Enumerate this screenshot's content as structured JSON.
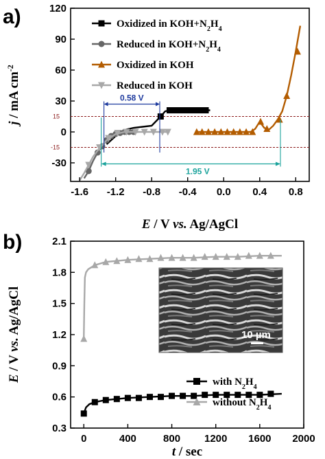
{
  "panels": {
    "a": "a)",
    "b": "b)"
  },
  "chart_data": [
    {
      "type": "line",
      "xlabel_parts": [
        "E",
        " / V ",
        "vs.",
        " Ag/AgCl"
      ],
      "ylabel_parts": [
        "j",
        " / mA cm",
        "-2"
      ],
      "xlim": [
        -1.7,
        0.95
      ],
      "ylim": [
        -48,
        120
      ],
      "xticks": [
        "-1.6",
        "-1.2",
        "-0.8",
        "-0.4",
        "0.0",
        "0.4",
        "0.8"
      ],
      "xtick_values": [
        -1.6,
        -1.2,
        -0.8,
        -0.4,
        0.0,
        0.4,
        0.8
      ],
      "yticks": [
        "-30",
        "0",
        "30",
        "60",
        "90",
        "120"
      ],
      "ytick_values": [
        -30,
        0,
        30,
        60,
        90,
        120
      ],
      "extra_yticks": [
        "15",
        "-15"
      ],
      "extra_ytick_values": [
        15,
        -15
      ],
      "legend": [
        {
          "label_parts": [
            "Oxidized in KOH+N",
            "2",
            "H",
            "4"
          ],
          "color": "#000000",
          "marker": "square"
        },
        {
          "label_parts": [
            "Reduced in KOH+N",
            "2",
            "H",
            "4"
          ],
          "color": "#666666",
          "marker": "circle"
        },
        {
          "label": "Oxidized in KOH",
          "color": "#b35c00",
          "marker": "triangle-up"
        },
        {
          "label": "Reduced in KOH",
          "color": "#a8a8a8",
          "marker": "triangle-down"
        }
      ],
      "series": [
        {
          "name": "Oxidized in KOH+N2H4",
          "color": "#000000",
          "marker": "square",
          "x": [
            -1.3,
            -1.25,
            -1.2,
            -1.15,
            -1.1,
            -1.0,
            -0.9,
            -0.8,
            -0.7,
            -0.65,
            -0.6,
            -0.55,
            -0.5,
            -0.45,
            -0.4,
            -0.35,
            -0.3,
            -0.25,
            -0.2,
            -0.15
          ],
          "y": [
            -12,
            -8,
            -4,
            -1,
            2,
            4,
            5,
            6,
            15,
            20,
            21,
            21,
            21,
            21,
            21,
            21,
            21,
            21,
            21,
            21
          ],
          "markers_x": [
            -0.7,
            -0.6,
            -0.55,
            -0.5,
            -0.45,
            -0.4,
            -0.35,
            -0.3,
            -0.25,
            -0.2
          ],
          "markers_y": [
            15,
            21,
            21,
            21,
            21,
            21,
            21,
            21,
            21,
            21
          ]
        },
        {
          "name": "Reduced in KOH+N2H4",
          "color": "#666666",
          "marker": "circle",
          "x": [
            -1.55,
            -1.5,
            -1.45,
            -1.4,
            -1.35,
            -1.3,
            -1.25,
            -1.2,
            -1.15,
            -1.1,
            -1.05,
            -1.0,
            -0.95
          ],
          "y": [
            -45,
            -38,
            -28,
            -20,
            -14,
            -8,
            -4,
            -2,
            -1,
            0,
            0,
            0,
            0
          ],
          "markers_x": [
            -1.5,
            -1.4,
            -1.35,
            -1.3,
            -1.25,
            -1.2,
            -1.15,
            -1.1,
            -1.05,
            -1.0
          ],
          "markers_y": [
            -38,
            -20,
            -14,
            -8,
            -4,
            -2,
            -1,
            0,
            0,
            0
          ]
        },
        {
          "name": "Oxidized in KOH",
          "color": "#b35c00",
          "marker": "triangle-up",
          "x": [
            -0.3,
            -0.2,
            -0.1,
            0.0,
            0.1,
            0.2,
            0.3,
            0.35,
            0.4,
            0.45,
            0.5,
            0.55,
            0.6,
            0.65,
            0.7,
            0.75,
            0.8,
            0.85
          ],
          "y": [
            0,
            0,
            0,
            0,
            0,
            0,
            0,
            3,
            10,
            4,
            2,
            6,
            12,
            20,
            35,
            55,
            78,
            103
          ],
          "markers_x": [
            -0.3,
            -0.24,
            -0.17,
            -0.1,
            -0.03,
            0.04,
            0.11,
            0.18,
            0.25,
            0.32,
            0.41,
            0.48,
            0.62,
            0.7,
            0.82
          ],
          "markers_y": [
            0,
            0,
            0,
            0,
            0,
            0,
            0,
            0,
            0,
            0,
            10,
            3,
            12,
            35,
            78
          ]
        },
        {
          "name": "Reduced in KOH",
          "color": "#a8a8a8",
          "marker": "triangle-down",
          "x": [
            -1.6,
            -1.55,
            -1.5,
            -1.45,
            -1.4,
            -1.35,
            -1.3,
            -1.2,
            -1.1,
            -1.0,
            -0.9,
            -0.8,
            -0.7,
            -0.6
          ],
          "y": [
            -47,
            -40,
            -32,
            -24,
            -18,
            -13,
            -8,
            -2,
            0,
            0,
            0,
            0,
            0,
            0
          ],
          "markers_x": [
            -1.5,
            -1.38,
            -1.28,
            -1.18,
            -1.08,
            -0.98,
            -0.88,
            -0.78,
            -0.68,
            -0.62
          ],
          "markers_y": [
            -32,
            -15,
            -6,
            -1,
            0,
            0,
            0,
            0,
            0,
            0
          ]
        }
      ],
      "annotations": {
        "gap_small": "0.58 V",
        "gap_large": "1.95 V"
      }
    },
    {
      "type": "line",
      "xlabel_parts": [
        "t",
        " / sec"
      ],
      "ylabel_parts": [
        "E",
        " / V ",
        "vs.",
        " Ag/AgCl"
      ],
      "xlim": [
        -120,
        2000
      ],
      "ylim": [
        0.3,
        2.1
      ],
      "xticks": [
        "0",
        "400",
        "800",
        "1200",
        "1600",
        "2000"
      ],
      "xtick_values": [
        0,
        400,
        800,
        1200,
        1600,
        2000
      ],
      "yticks": [
        "0.3",
        "0.6",
        "0.9",
        "1.2",
        "1.5",
        "1.8",
        "2.1"
      ],
      "ytick_values": [
        0.3,
        0.6,
        0.9,
        1.2,
        1.5,
        1.8,
        2.1
      ],
      "legend": [
        {
          "label_parts": [
            "with N",
            "2",
            "H",
            "4"
          ],
          "color": "#000000",
          "marker": "square"
        },
        {
          "label_parts": [
            "without N",
            "2",
            "H",
            "4"
          ],
          "color": "#a8a8a8",
          "marker": "triangle-up"
        }
      ],
      "series": [
        {
          "name": "with N2H4",
          "color": "#000000",
          "marker": "square",
          "x": [
            0,
            20,
            50,
            100,
            200,
            300,
            400,
            600,
            800,
            1000,
            1200,
            1400,
            1600,
            1800
          ],
          "y": [
            0.44,
            0.5,
            0.53,
            0.55,
            0.57,
            0.58,
            0.59,
            0.6,
            0.61,
            0.61,
            0.62,
            0.62,
            0.62,
            0.63
          ],
          "markers_x": [
            0,
            100,
            200,
            300,
            400,
            500,
            600,
            700,
            800,
            900,
            1000,
            1100,
            1200,
            1300,
            1400,
            1500,
            1600,
            1700
          ],
          "markers_y": [
            0.44,
            0.55,
            0.57,
            0.58,
            0.59,
            0.59,
            0.6,
            0.6,
            0.61,
            0.61,
            0.61,
            0.62,
            0.62,
            0.62,
            0.62,
            0.62,
            0.62,
            0.63
          ]
        },
        {
          "name": "without N2H4",
          "color": "#a8a8a8",
          "marker": "triangle-up",
          "x": [
            0,
            5,
            10,
            20,
            40,
            100,
            200,
            400,
            600,
            800,
            1000,
            1200,
            1400,
            1600,
            1800
          ],
          "y": [
            1.16,
            1.5,
            1.75,
            1.8,
            1.83,
            1.87,
            1.9,
            1.92,
            1.93,
            1.94,
            1.94,
            1.95,
            1.95,
            1.96,
            1.96
          ],
          "markers_x": [
            0,
            100,
            200,
            300,
            400,
            500,
            600,
            700,
            800,
            900,
            1000,
            1100,
            1200,
            1300,
            1400,
            1500,
            1600,
            1700
          ],
          "markers_y": [
            1.16,
            1.87,
            1.9,
            1.91,
            1.92,
            1.93,
            1.93,
            1.94,
            1.94,
            1.94,
            1.94,
            1.95,
            1.95,
            1.95,
            1.95,
            1.96,
            1.96,
            1.96
          ]
        }
      ],
      "inset": {
        "scale_bar_label": "10 µm"
      }
    }
  ]
}
